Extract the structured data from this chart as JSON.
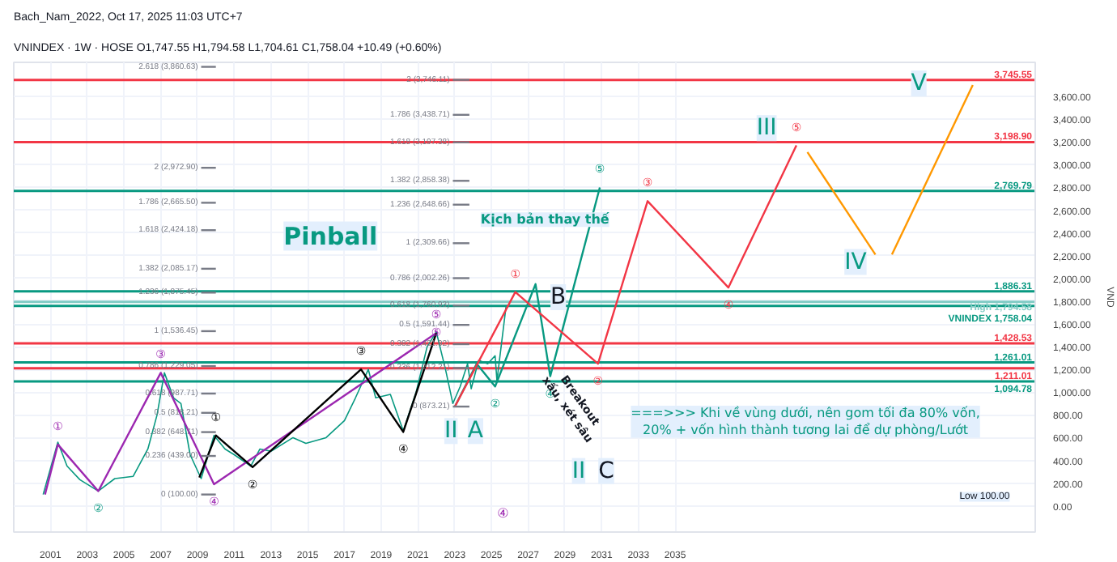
{
  "chart_data": {
    "type": "line",
    "title": "VNINDEX · 1W · HOSE  O1,747.55  H1,794.58  L1,704.61  C1,758.04  +10.49 (+0.60%)",
    "subtitle": "Bach_Nam_2022, Oct 17, 2025 11:03 UTC+7",
    "xlim": [
      1999,
      2054.6
    ],
    "xticks": [
      2001,
      2003,
      2005,
      2007,
      2009,
      2011,
      2013,
      2015,
      2017,
      2019,
      2021,
      2023,
      2025,
      2027,
      2029,
      2031,
      2033,
      2035
    ],
    "ylim": [
      -230,
      3900
    ],
    "yticks": [
      {
        "value": 0,
        "label": "0.00"
      },
      {
        "value": 200,
        "label": "200.00"
      },
      {
        "value": 400,
        "label": "400.00"
      },
      {
        "value": 600,
        "label": "600.00"
      },
      {
        "value": 800,
        "label": "800.00"
      },
      {
        "value": 1000,
        "label": "1,000.00"
      },
      {
        "value": 1200,
        "label": "1,200.00"
      },
      {
        "value": 1400,
        "label": "1,400.00"
      },
      {
        "value": 1600,
        "label": "1,600.00"
      },
      {
        "value": 1800,
        "label": "1,800.00"
      },
      {
        "value": 2000,
        "label": "2,000.00"
      },
      {
        "value": 2200,
        "label": "2,200.00"
      },
      {
        "value": 2400,
        "label": "2,400.00"
      },
      {
        "value": 2600,
        "label": "2,600.00"
      },
      {
        "value": 2800,
        "label": "2,800.00"
      },
      {
        "value": 3000,
        "label": "3,000.00"
      },
      {
        "value": 3200,
        "label": "3,200.00"
      },
      {
        "value": 3400,
        "label": "3,400.00"
      },
      {
        "value": 3600,
        "label": "3,600.00"
      }
    ],
    "ylabel": "VND",
    "grid": true,
    "line_style": "solid",
    "marker": "none",
    "series": [
      {
        "color": "#089981",
        "x": [
          2000.6,
          2001.4,
          2001.9,
          2002.6,
          2003.6,
          2004.5,
          2005.5,
          2006.3,
          2006.8,
          2007.2,
          2007.7,
          2008.1,
          2008.6,
          2009.2,
          2009.9,
          2010.5,
          2011.0,
          2011.9,
          2012.4,
          2013.0,
          2014.2,
          2014.9,
          2016.0,
          2017.0,
          2017.6,
          2018.3,
          2018.7,
          2019.5,
          2020.2,
          2020.9,
          2021.5,
          2022.0,
          2022.5,
          2022.9,
          2023.3,
          2023.7,
          2023.9,
          2024.3,
          2024.8,
          2025.2,
          2025.3,
          2025.8
        ],
        "values": [
          100,
          560,
          350,
          230,
          130,
          240,
          260,
          500,
          800,
          1170,
          950,
          900,
          450,
          240,
          620,
          500,
          450,
          350,
          500,
          480,
          600,
          550,
          600,
          750,
          950,
          1200,
          950,
          980,
          660,
          1000,
          1400,
          1530,
          1200,
          900,
          1050,
          1250,
          1030,
          1280,
          1250,
          1320,
          1100,
          1760
        ]
      },
      {
        "color": "#9c27b0",
        "x": [
          2000.7,
          2001.4,
          2003.6,
          2007.0,
          2009.9,
          2022.0
        ],
        "values": [
          100,
          540,
          130,
          1170,
          190,
          1520
        ]
      },
      {
        "color": "#000000",
        "x": [
          2009.1,
          2010.0,
          2012.0,
          2017.9,
          2020.2,
          2022.0
        ],
        "values": [
          250,
          620,
          340,
          1200,
          650,
          1520
        ]
      },
      {
        "color": "#089981",
        "x": [
          2023.0,
          2024.2,
          2025.2,
          2027.4,
          2028.2,
          2030.9
        ],
        "values": [
          870,
          1250,
          1050,
          1950,
          1140,
          2800
        ]
      },
      {
        "color": "#f23645",
        "x": [
          2023.0,
          2026.3,
          2030.8,
          2033.5,
          2037.9,
          2041.6
        ],
        "values": [
          870,
          1880,
          1250,
          2680,
          1920,
          3170
        ]
      },
      {
        "color": "#ff9800",
        "x": [
          2042.2,
          2045.9
        ],
        "values": [
          3110,
          2210
        ]
      },
      {
        "color": "#ff9800",
        "x": [
          2046.8,
          2051.2
        ],
        "values": [
          2210,
          3700
        ]
      },
      {
        "color": "#787b86",
        "x": [
          2009.2,
          2010.0
        ],
        "values": [
          3860.63,
          3860.63
        ]
      },
      {
        "color": "#787b86",
        "x": [
          2009.2,
          2010.0
        ],
        "values": [
          2972.9,
          2972.9
        ]
      },
      {
        "color": "#787b86",
        "x": [
          2009.2,
          2010.0
        ],
        "values": [
          2665.5,
          2665.5
        ]
      },
      {
        "color": "#787b86",
        "x": [
          2009.2,
          2010.0
        ],
        "values": [
          2424.18,
          2424.18
        ]
      },
      {
        "color": "#787b86",
        "x": [
          2009.2,
          2010.0
        ],
        "values": [
          2085.17,
          2085.17
        ]
      },
      {
        "color": "#787b86",
        "x": [
          2009.2,
          2010.0
        ],
        "values": [
          1875.45,
          1875.45
        ]
      },
      {
        "color": "#787b86",
        "x": [
          2009.2,
          2010.0
        ],
        "values": [
          1536.45,
          1536.45
        ]
      },
      {
        "color": "#787b86",
        "x": [
          2009.2,
          2010.0
        ],
        "values": [
          1229.05,
          1229.05
        ]
      },
      {
        "color": "#787b86",
        "x": [
          2009.2,
          2010.0
        ],
        "values": [
          987.71,
          987.71
        ]
      },
      {
        "color": "#787b86",
        "x": [
          2009.2,
          2010.0
        ],
        "values": [
          818.21,
          818.21
        ]
      },
      {
        "color": "#787b86",
        "x": [
          2009.2,
          2010.0
        ],
        "values": [
          648.71,
          648.71
        ]
      },
      {
        "color": "#787b86",
        "x": [
          2009.2,
          2010.0
        ],
        "values": [
          439.0,
          439.0
        ]
      },
      {
        "color": "#787b86",
        "x": [
          2009.2,
          2010.0
        ],
        "values": [
          100.0,
          100.0
        ]
      },
      {
        "color": "#787b86",
        "x": [
          2022.9,
          2023.8
        ],
        "values": [
          3746.11,
          3746.11
        ]
      },
      {
        "color": "#787b86",
        "x": [
          2022.9,
          2023.8
        ],
        "values": [
          3438.71,
          3438.71
        ]
      },
      {
        "color": "#787b86",
        "x": [
          2022.9,
          2023.8
        ],
        "values": [
          3197.38,
          3197.38
        ]
      },
      {
        "color": "#787b86",
        "x": [
          2022.9,
          2023.8
        ],
        "values": [
          2858.38,
          2858.38
        ]
      },
      {
        "color": "#787b86",
        "x": [
          2022.9,
          2023.8
        ],
        "values": [
          2648.66,
          2648.66
        ]
      },
      {
        "color": "#787b86",
        "x": [
          2022.9,
          2023.8
        ],
        "values": [
          2309.66,
          2309.66
        ]
      },
      {
        "color": "#787b86",
        "x": [
          2022.9,
          2023.8
        ],
        "values": [
          2002.26,
          2002.26
        ]
      },
      {
        "color": "#787b86",
        "x": [
          2022.9,
          2023.8
        ],
        "values": [
          1760.93,
          1760.93
        ]
      },
      {
        "color": "#787b86",
        "x": [
          2022.9,
          2023.8
        ],
        "values": [
          1591.44,
          1591.44
        ]
      },
      {
        "color": "#787b86",
        "x": [
          2022.9,
          2023.8
        ],
        "values": [
          1421.92,
          1421.92
        ]
      },
      {
        "color": "#787b86",
        "x": [
          2022.9,
          2023.8
        ],
        "values": [
          1212.21,
          1212.21
        ]
      },
      {
        "color": "#787b86",
        "x": [
          2022.9,
          2023.8
        ],
        "values": [
          873.21,
          873.21
        ]
      }
    ],
    "ref_lines": [
      {
        "axis": "y",
        "value": 3745.55,
        "label": "3,745.55",
        "color": "#f23645"
      },
      {
        "axis": "y",
        "value": 3198.9,
        "label": "3,198.90",
        "color": "#f23645"
      },
      {
        "axis": "y",
        "value": 2769.79,
        "label": "2,769.79",
        "color": "#089981"
      },
      {
        "axis": "y",
        "value": 1886.31,
        "label": "1,886.31",
        "color": "#089981"
      },
      {
        "axis": "y",
        "value": 1794.58,
        "label": "High 1,794.58",
        "color": "#80cbc4"
      },
      {
        "axis": "y",
        "value": 1758.04,
        "label": "VNINDEX 1,758.04",
        "color": "#089981"
      },
      {
        "axis": "y",
        "value": 1428.53,
        "label": "1,428.53",
        "color": "#f23645"
      },
      {
        "axis": "y",
        "value": 1261.01,
        "label": "1,261.01",
        "color": "#089981"
      },
      {
        "axis": "y",
        "value": 1211.01,
        "label": "1,211.01",
        "color": "#f23645"
      },
      {
        "axis": "y",
        "value": 1094.78,
        "label": "1,094.78",
        "color": "#089981"
      }
    ],
    "annotations": [
      {
        "text": "2.618 (3,860.63)",
        "x": 2009.2,
        "y": 3860.63
      },
      {
        "text": "2 (2,972.90)",
        "x": 2009.2,
        "y": 2972.9
      },
      {
        "text": "1.786 (2,665.50)",
        "x": 2009.2,
        "y": 2665.5
      },
      {
        "text": "1.618 (2,424.18)",
        "x": 2009.2,
        "y": 2424.18
      },
      {
        "text": "1.382 (2,085.17)",
        "x": 2009.2,
        "y": 2085.17
      },
      {
        "text": "1.236 (1,875.45)",
        "x": 2009.2,
        "y": 1875.45
      },
      {
        "text": "1 (1,536.45)",
        "x": 2009.2,
        "y": 1536.45
      },
      {
        "text": "0.786 (1,229.05)",
        "x": 2009.2,
        "y": 1229.05
      },
      {
        "text": "0.618 (987.71)",
        "x": 2009.2,
        "y": 987.71
      },
      {
        "text": "0.5 (818.21)",
        "x": 2009.2,
        "y": 818.21
      },
      {
        "text": "0.382 (648.71)",
        "x": 2009.2,
        "y": 648.71
      },
      {
        "text": "0.236 (439.00)",
        "x": 2009.2,
        "y": 439.0
      },
      {
        "text": "0 (100.00)",
        "x": 2009.2,
        "y": 100.0
      },
      {
        "text": "2 (3,746.11)",
        "x": 2022.9,
        "y": 3746.11
      },
      {
        "text": "1.786 (3,438.71)",
        "x": 2022.9,
        "y": 3438.71
      },
      {
        "text": "1.618 (3,197.38)",
        "x": 2022.9,
        "y": 3197.38
      },
      {
        "text": "1.382 (2,858.38)",
        "x": 2022.9,
        "y": 2858.38
      },
      {
        "text": "1.236 (2,648.66)",
        "x": 2022.9,
        "y": 2648.66
      },
      {
        "text": "1 (2,309.66)",
        "x": 2022.9,
        "y": 2309.66
      },
      {
        "text": "0.786 (2,002.26)",
        "x": 2022.9,
        "y": 2002.26
      },
      {
        "text": "0.618 (1,760.93)",
        "x": 2022.9,
        "y": 1760.93
      },
      {
        "text": "0.5 (1,591.44)",
        "x": 2022.9,
        "y": 1591.44
      },
      {
        "text": "0.382 (1,421.92)",
        "x": 2022.9,
        "y": 1421.92
      },
      {
        "text": "0.236 (1,212.21)",
        "x": 2022.9,
        "y": 1212.21
      },
      {
        "text": "0 (873.21)",
        "x": 2022.9,
        "y": 873.21
      },
      {
        "text": "①",
        "x": 2001.4,
        "y": 540
      },
      {
        "text": "②",
        "x": 2003.6,
        "y": 130
      },
      {
        "text": "③",
        "x": 2007.0,
        "y": 1170
      },
      {
        "text": "④",
        "x": 2009.9,
        "y": 190
      },
      {
        "text": "⑤",
        "x": 2022.0,
        "y": 1520
      },
      {
        "text": "①",
        "x": 2010.0,
        "y": 620
      },
      {
        "text": "②",
        "x": 2012.0,
        "y": 340
      },
      {
        "text": "③",
        "x": 2017.9,
        "y": 1200
      },
      {
        "text": "④",
        "x": 2020.2,
        "y": 650
      },
      {
        "text": "⑤",
        "x": 2022.0,
        "y": 1520
      },
      {
        "text": "②",
        "x": 2025.2,
        "y": 1050
      },
      {
        "text": "④",
        "x": 2028.2,
        "y": 1140
      },
      {
        "text": "⑤",
        "x": 2030.9,
        "y": 2800
      },
      {
        "text": "①",
        "x": 2026.3,
        "y": 1880
      },
      {
        "text": "②",
        "x": 2030.8,
        "y": 1250
      },
      {
        "text": "③",
        "x": 2033.5,
        "y": 2680
      },
      {
        "text": "④",
        "x": 2037.9,
        "y": 1920
      },
      {
        "text": "⑤",
        "x": 2041.6,
        "y": 3170
      },
      "Pinball",
      "Kịch bản thay thế",
      "Breakout\nxấu, xét sâu",
      "===>>> Khi về vùng dưới, nên gom tối đa 80% vốn,\n20% + vốn hình thành tương lai để dự phòng/Lướt",
      "II",
      "A",
      "B",
      "III",
      "IV",
      "V",
      "II",
      "C",
      "④",
      "Low 100.00"
    ]
  }
}
